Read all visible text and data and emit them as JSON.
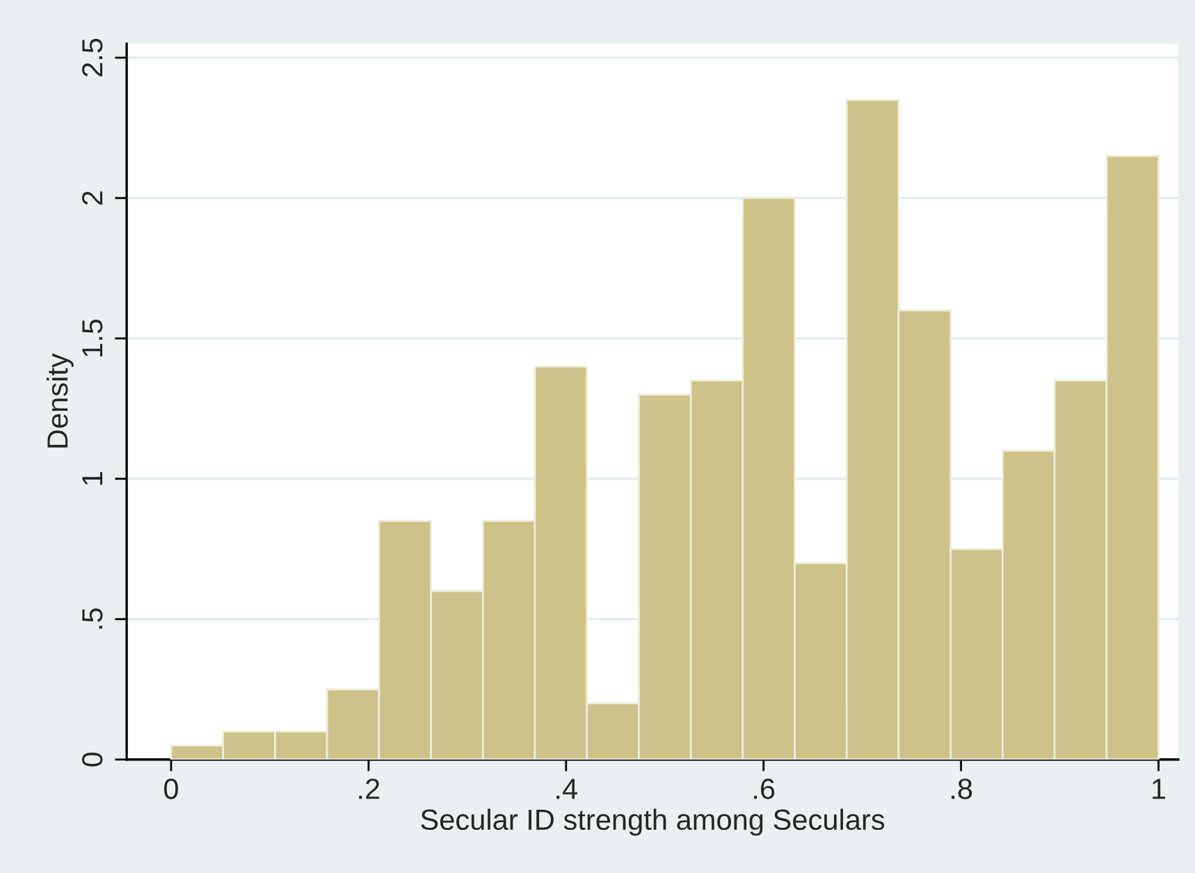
{
  "chart_data": {
    "type": "histogram",
    "xlabel": "Secular ID strength among Seculars",
    "ylabel": "Density",
    "bins": [
      0,
      0.0526,
      0.1053,
      0.1579,
      0.2105,
      0.2632,
      0.3158,
      0.3684,
      0.4211,
      0.4737,
      0.5263,
      0.5789,
      0.6316,
      0.6842,
      0.7368,
      0.7895,
      0.8421,
      0.8947,
      0.9474,
      1
    ],
    "values": [
      0.05,
      0.1,
      0.1,
      0.25,
      0.85,
      0.6,
      0.85,
      1.4,
      0.2,
      1.3,
      1.35,
      2.0,
      0.7,
      2.35,
      1.6,
      0.75,
      1.1,
      1.35,
      2.15
    ],
    "color": "#cdc38a",
    "xlim": [
      -0.045,
      1.02
    ],
    "xticks": [
      0,
      {
        "value": 0.2,
        "label": ".2"
      },
      {
        "value": 0.4,
        "label": ".4"
      },
      {
        "value": 0.6,
        "label": ".6"
      },
      {
        "value": 0.8,
        "label": ".8"
      },
      1
    ],
    "ylim": [
      0,
      2.55
    ],
    "yticks": [
      0,
      {
        "value": 0.5,
        "label": ".5"
      },
      1,
      1.5,
      2,
      2.5
    ],
    "grid": "y"
  }
}
